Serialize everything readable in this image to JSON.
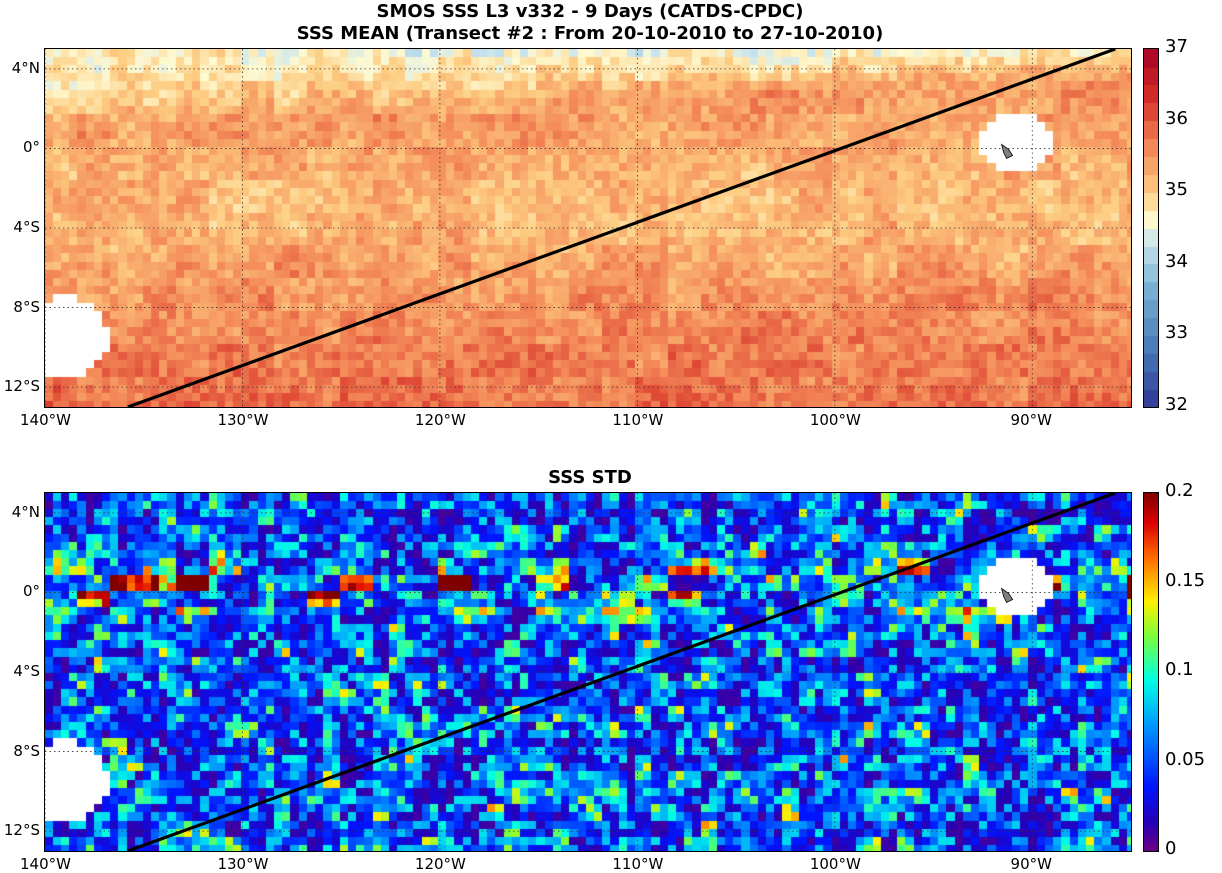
{
  "titles": {
    "top_line1": "SMOS SSS L3 v332 - 9 Days (CATDS-CPDC)",
    "top_line2": "SSS MEAN (Transect #2 : From 20-10-2010 to 27-10-2010)",
    "bottom": "SSS STD"
  },
  "chart_data": [
    {
      "type": "heatmap",
      "title": "SSS MEAN (Transect #2 : From 20-10-2010 to 27-10-2010)",
      "x_range_lon": [
        -140,
        -85
      ],
      "y_range_lat": [
        -13,
        5
      ],
      "x_ticks": [
        {
          "value": -140,
          "label": "140°W"
        },
        {
          "value": -130,
          "label": "130°W"
        },
        {
          "value": -120,
          "label": "120°W"
        },
        {
          "value": -110,
          "label": "110°W"
        },
        {
          "value": -100,
          "label": "100°W"
        },
        {
          "value": -90,
          "label": "90°W"
        }
      ],
      "y_ticks": [
        {
          "value": 4,
          "label": "4°N"
        },
        {
          "value": 0,
          "label": "0°"
        },
        {
          "value": -4,
          "label": "4°S"
        },
        {
          "value": -8,
          "label": "8°S"
        },
        {
          "value": -12,
          "label": "12°S"
        }
      ],
      "grid": true,
      "colorbar": {
        "min": 32,
        "max": 37,
        "ticks": [
          32,
          33,
          34,
          35,
          36,
          37
        ],
        "colormap": "blue-white-red"
      },
      "transect": {
        "lon": [
          -135.8,
          -85.8
        ],
        "lat": [
          -13,
          5
        ]
      }
    },
    {
      "type": "heatmap",
      "title": "SSS STD",
      "x_range_lon": [
        -140,
        -85
      ],
      "y_range_lat": [
        -13,
        5
      ],
      "x_ticks": [
        {
          "value": -140,
          "label": "140°W"
        },
        {
          "value": -130,
          "label": "130°W"
        },
        {
          "value": -120,
          "label": "120°W"
        },
        {
          "value": -110,
          "label": "110°W"
        },
        {
          "value": -100,
          "label": "100°W"
        },
        {
          "value": -90,
          "label": "90°W"
        }
      ],
      "y_ticks": [
        {
          "value": 4,
          "label": "4°N"
        },
        {
          "value": 0,
          "label": "0°"
        },
        {
          "value": -4,
          "label": "4°S"
        },
        {
          "value": -8,
          "label": "8°S"
        },
        {
          "value": -12,
          "label": "12°S"
        }
      ],
      "grid": true,
      "colorbar": {
        "min": 0,
        "max": 0.2,
        "ticks": [
          0,
          0.05,
          0.1,
          0.15,
          0.2
        ],
        "tick_labels": [
          "0",
          "0.05",
          "0.1",
          "0.15",
          "0.2"
        ],
        "colormap": "jet"
      },
      "transect": {
        "lon": [
          -135.8,
          -85.8
        ],
        "lat": [
          -13,
          5
        ]
      }
    }
  ]
}
